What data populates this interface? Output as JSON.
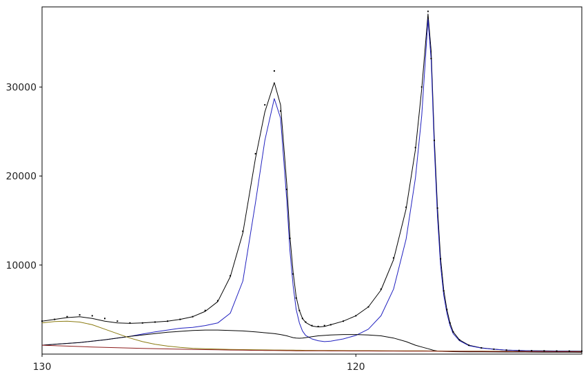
{
  "chart_data": {
    "type": "line",
    "title": "",
    "xlabel": "",
    "ylabel": "",
    "x_reversed": true,
    "xlim": [
      130,
      112.8
    ],
    "ylim": [
      0,
      39000
    ],
    "grid": false,
    "x_ticks": [
      130,
      120
    ],
    "x_tick_labels": [
      "130",
      "120"
    ],
    "y_ticks": [
      10000,
      20000,
      30000
    ],
    "y_tick_labels": [
      "10000",
      "20000",
      "30000"
    ],
    "series": [
      {
        "role": "observed",
        "style": "points",
        "color": "#000000",
        "x": [
          130.0,
          129.6,
          129.2,
          128.8,
          128.4,
          128.0,
          127.6,
          127.2,
          126.8,
          126.4,
          126.0,
          125.6,
          125.2,
          124.8,
          124.4,
          124.0,
          123.6,
          123.2,
          122.9,
          122.6,
          122.4,
          122.2,
          122.1,
          122.0,
          121.9,
          121.8,
          121.7,
          121.6,
          121.4,
          121.2,
          121.0,
          120.8,
          120.4,
          120.0,
          119.6,
          119.2,
          118.8,
          118.4,
          118.1,
          117.9,
          117.7,
          117.6,
          117.5,
          117.4,
          117.3,
          117.2,
          117.1,
          117.0,
          116.9,
          116.7,
          116.4,
          116.0,
          115.6,
          115.2,
          114.8,
          114.4,
          114.0,
          113.6,
          113.2,
          112.8
        ],
        "y": [
          3700,
          3900,
          4200,
          4400,
          4300,
          4000,
          3700,
          3500,
          3500,
          3600,
          3700,
          3900,
          4200,
          4900,
          6000,
          8800,
          13800,
          22500,
          28000,
          31800,
          27300,
          18500,
          13000,
          9000,
          6300,
          4900,
          4000,
          3600,
          3200,
          3100,
          3200,
          3300,
          3700,
          4300,
          5300,
          7300,
          10800,
          16500,
          23200,
          30000,
          38500,
          33200,
          24000,
          16400,
          10700,
          7100,
          5000,
          3500,
          2500,
          1600,
          1000,
          700,
          550,
          450,
          400,
          380,
          360,
          350,
          340,
          330
        ]
      },
      {
        "role": "fit-envelope",
        "style": "line",
        "color": "#000000",
        "x": [
          130.0,
          129.6,
          129.2,
          128.8,
          128.4,
          128.0,
          127.6,
          127.2,
          126.8,
          126.4,
          126.0,
          125.6,
          125.2,
          124.8,
          124.4,
          124.0,
          123.6,
          123.2,
          122.9,
          122.6,
          122.4,
          122.2,
          122.1,
          122.0,
          121.9,
          121.8,
          121.7,
          121.6,
          121.4,
          121.2,
          121.0,
          120.8,
          120.4,
          120.0,
          119.6,
          119.2,
          118.8,
          118.4,
          118.1,
          117.9,
          117.7,
          117.6,
          117.5,
          117.4,
          117.3,
          117.2,
          117.1,
          117.0,
          116.9,
          116.7,
          116.4,
          116.0,
          115.6,
          115.2,
          114.8,
          114.4,
          114.0,
          113.6,
          113.2,
          112.8
        ],
        "y": [
          3700,
          3900,
          4100,
          4200,
          4000,
          3700,
          3500,
          3450,
          3500,
          3600,
          3700,
          3900,
          4200,
          4800,
          5900,
          8700,
          13600,
          22000,
          27200,
          30500,
          28000,
          19000,
          13200,
          9200,
          6400,
          4900,
          4000,
          3550,
          3150,
          3050,
          3100,
          3300,
          3700,
          4300,
          5300,
          7200,
          10600,
          16300,
          23000,
          29800,
          38200,
          34000,
          24300,
          16500,
          10800,
          7200,
          5000,
          3500,
          2500,
          1600,
          1000,
          700,
          550,
          450,
          400,
          380,
          360,
          350,
          340,
          330
        ]
      },
      {
        "role": "component-1",
        "style": "line",
        "color": "#1f1fbf",
        "x": [
          130.0,
          129.6,
          129.2,
          128.8,
          128.4,
          128.0,
          127.6,
          127.2,
          126.8,
          126.4,
          126.0,
          125.6,
          125.2,
          124.8,
          124.4,
          124.0,
          123.6,
          123.2,
          122.9,
          122.6,
          122.4,
          122.2,
          122.1,
          122.0,
          121.9,
          121.8,
          121.7,
          121.6,
          121.4,
          121.2,
          121.0,
          120.8,
          120.4,
          120.0,
          119.6,
          119.2,
          118.8,
          118.4,
          118.1,
          117.9,
          117.7,
          117.6,
          117.5,
          117.4,
          117.3,
          117.2,
          117.1,
          117.0,
          116.9,
          116.7,
          116.4,
          116.0,
          115.6,
          115.2,
          114.8,
          114.4,
          114.0,
          113.6,
          113.2,
          112.8
        ],
        "y": [
          1000,
          1100,
          1200,
          1300,
          1450,
          1600,
          1800,
          2000,
          2250,
          2500,
          2700,
          2900,
          3000,
          3200,
          3500,
          4600,
          8200,
          17000,
          24000,
          28700,
          26500,
          17200,
          11600,
          7700,
          5000,
          3500,
          2600,
          2100,
          1700,
          1500,
          1400,
          1450,
          1700,
          2100,
          2800,
          4300,
          7300,
          12900,
          19800,
          26800,
          37600,
          33000,
          23300,
          15500,
          10000,
          6600,
          4600,
          3200,
          2300,
          1500,
          950,
          680,
          540,
          440,
          400,
          370,
          350,
          340,
          330,
          320
        ]
      },
      {
        "role": "component-2",
        "style": "line",
        "color": "#000000",
        "x": [
          130.0,
          129.6,
          129.2,
          128.8,
          128.4,
          128.0,
          127.6,
          127.2,
          126.8,
          126.4,
          126.0,
          125.6,
          125.2,
          124.8,
          124.4,
          124.0,
          123.6,
          123.2,
          122.9,
          122.6,
          122.4,
          122.2,
          122.1,
          122.0,
          121.9,
          121.8,
          121.7,
          121.6,
          121.4,
          121.2,
          121.0,
          120.8,
          120.4,
          120.0,
          119.6,
          119.2,
          118.8,
          118.4,
          118.1,
          117.9,
          117.7,
          117.6,
          117.5,
          117.4,
          117.3,
          117.2,
          117.1,
          117.0,
          116.9,
          116.7,
          116.4,
          116.0,
          115.6,
          115.2,
          114.8,
          114.4,
          114.0,
          113.6,
          113.2,
          112.8
        ],
        "y": [
          1000,
          1100,
          1200,
          1300,
          1450,
          1600,
          1800,
          2000,
          2150,
          2300,
          2450,
          2550,
          2650,
          2700,
          2700,
          2650,
          2600,
          2500,
          2400,
          2300,
          2200,
          2050,
          1950,
          1850,
          1800,
          1780,
          1800,
          1850,
          1950,
          2050,
          2100,
          2150,
          2200,
          2200,
          2150,
          2050,
          1800,
          1400,
          1000,
          800,
          600,
          500,
          400,
          350,
          320,
          300,
          290,
          280,
          270,
          260,
          250,
          245,
          240,
          235,
          230,
          225,
          220,
          215,
          210,
          205
        ]
      },
      {
        "role": "component-3",
        "style": "line",
        "color": "#8a7a10",
        "x": [
          130.0,
          129.6,
          129.2,
          128.8,
          128.4,
          128.0,
          127.6,
          127.2,
          126.8,
          126.4,
          126.0,
          125.6,
          125.2,
          124.8,
          124.4,
          124.0,
          123.6,
          123.2,
          122.9,
          122.6,
          122.4,
          122.2,
          122.1,
          122.0,
          121.9,
          121.8,
          121.7,
          121.6,
          121.4,
          121.2,
          121.0,
          120.8,
          120.4,
          120.0,
          119.6,
          119.2,
          118.8,
          118.4,
          118.1,
          117.9,
          117.7,
          117.6,
          117.5,
          117.4,
          117.3,
          117.2,
          117.1,
          117.0,
          116.9,
          116.7,
          116.4,
          116.0,
          115.6,
          115.2,
          114.8,
          114.4,
          114.0,
          113.6,
          113.2,
          112.8
        ],
        "y": [
          3500,
          3650,
          3700,
          3600,
          3300,
          2800,
          2300,
          1800,
          1400,
          1100,
          900,
          750,
          650,
          600,
          560,
          520,
          500,
          480,
          470,
          460,
          455,
          450,
          445,
          440,
          435,
          430,
          425,
          420,
          415,
          410,
          405,
          400,
          395,
          390,
          385,
          380,
          375,
          370,
          365,
          360,
          355,
          352,
          350,
          348,
          346,
          344,
          342,
          340,
          338,
          335,
          330,
          325,
          320,
          315,
          310,
          305,
          300,
          295,
          290,
          285
        ]
      },
      {
        "role": "component-4",
        "style": "line",
        "color": "#8b1a1a",
        "x": [
          130.0,
          129.6,
          129.2,
          128.8,
          128.4,
          128.0,
          127.6,
          127.2,
          126.8,
          126.4,
          126.0,
          125.6,
          125.2,
          124.8,
          124.4,
          124.0,
          123.6,
          123.2,
          122.9,
          122.6,
          122.4,
          122.2,
          122.1,
          122.0,
          121.9,
          121.8,
          121.7,
          121.6,
          121.4,
          121.2,
          121.0,
          120.8,
          120.4,
          120.0,
          119.6,
          119.2,
          118.8,
          118.4,
          118.1,
          117.9,
          117.7,
          117.6,
          117.5,
          117.4,
          117.3,
          117.2,
          117.1,
          117.0,
          116.9,
          116.7,
          116.4,
          116.0,
          115.6,
          115.2,
          114.8,
          114.4,
          114.0,
          113.6,
          113.2,
          112.8
        ],
        "y": [
          1000,
          950,
          900,
          850,
          800,
          760,
          720,
          680,
          640,
          610,
          580,
          550,
          520,
          500,
          480,
          460,
          440,
          420,
          410,
          400,
          395,
          390,
          385,
          380,
          375,
          372,
          370,
          368,
          365,
          362,
          360,
          357,
          354,
          350,
          346,
          342,
          338,
          334,
          330,
          327,
          325,
          323,
          321,
          319,
          317,
          315,
          313,
          311,
          309,
          306,
          302,
          298,
          294,
          290,
          286,
          282,
          278,
          274,
          270,
          266
        ]
      }
    ]
  }
}
